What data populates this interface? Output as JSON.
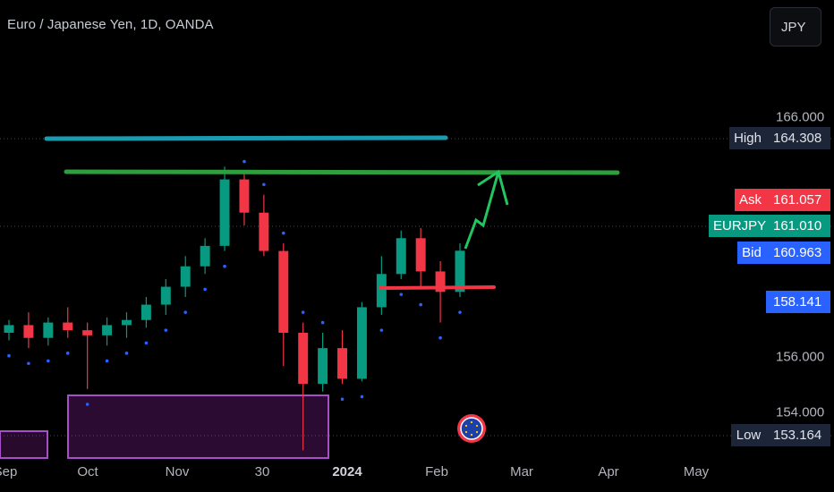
{
  "title": "Euro / Japanese Yen, 1D, OANDA",
  "currency_button": "JPY",
  "y_axis": {
    "ticks": [
      "166.000",
      "156.000",
      "154.000"
    ]
  },
  "x_axis": {
    "ticks": [
      "Sep",
      "Oct",
      "Nov",
      "30",
      "2024",
      "Feb",
      "Mar",
      "Apr",
      "May"
    ]
  },
  "price_tags": {
    "high": {
      "label": "High",
      "value": "164.308"
    },
    "ask": {
      "label": "Ask",
      "value": "161.057"
    },
    "last": {
      "label": "EURJPY",
      "value": "161.010"
    },
    "bid": {
      "label": "Bid",
      "value": "160.963"
    },
    "marker": {
      "value": "158.141"
    },
    "low": {
      "label": "Low",
      "value": "153.164"
    }
  },
  "colors": {
    "up": "#089981",
    "down": "#f23645",
    "sar": "#2962ff",
    "resistance_top": "#1a9bb0",
    "resistance": "#2e9e3e",
    "support": "#f23645",
    "zone": "#9c27b0",
    "projection": "#22c55e"
  },
  "chart_data": {
    "type": "candlestick",
    "symbol": "EURJPY",
    "timeframe": "1D",
    "ylim": [
      152.9,
      167.6
    ],
    "series": [
      {
        "name": "",
        "values": [
          {
            "x": "2023-09-01",
            "o": 157.8,
            "h": 158.3,
            "l": 157.5,
            "c": 158.1
          },
          {
            "x": "2023-09-08",
            "o": 158.1,
            "h": 158.6,
            "l": 157.2,
            "c": 157.6
          },
          {
            "x": "2023-09-15",
            "o": 157.6,
            "h": 158.4,
            "l": 157.3,
            "c": 158.2
          },
          {
            "x": "2023-09-22",
            "o": 158.2,
            "h": 158.8,
            "l": 157.6,
            "c": 157.9
          },
          {
            "x": "2023-09-29",
            "o": 157.9,
            "h": 158.2,
            "l": 155.6,
            "c": 157.7
          },
          {
            "x": "2023-10-06",
            "o": 157.7,
            "h": 158.4,
            "l": 157.3,
            "c": 158.1
          },
          {
            "x": "2023-10-13",
            "o": 158.1,
            "h": 158.6,
            "l": 157.6,
            "c": 158.3
          },
          {
            "x": "2023-10-20",
            "o": 158.3,
            "h": 159.2,
            "l": 158.0,
            "c": 158.9
          },
          {
            "x": "2023-10-27",
            "o": 158.9,
            "h": 159.9,
            "l": 158.5,
            "c": 159.6
          },
          {
            "x": "2023-11-03",
            "o": 159.6,
            "h": 160.8,
            "l": 159.2,
            "c": 160.4
          },
          {
            "x": "2023-11-10",
            "o": 160.4,
            "h": 161.5,
            "l": 160.1,
            "c": 161.2
          },
          {
            "x": "2023-11-17",
            "o": 161.2,
            "h": 164.3,
            "l": 161.0,
            "c": 163.8
          },
          {
            "x": "2023-11-24",
            "o": 163.8,
            "h": 164.1,
            "l": 162.0,
            "c": 162.5
          },
          {
            "x": "2023-12-01",
            "o": 162.5,
            "h": 163.2,
            "l": 160.8,
            "c": 161.0
          },
          {
            "x": "2023-12-08",
            "o": 161.0,
            "h": 161.3,
            "l": 156.5,
            "c": 157.8
          },
          {
            "x": "2023-12-15",
            "o": 157.8,
            "h": 158.2,
            "l": 153.2,
            "c": 155.8
          },
          {
            "x": "2023-12-22",
            "o": 155.8,
            "h": 157.8,
            "l": 155.5,
            "c": 157.2
          },
          {
            "x": "2023-12-29",
            "o": 157.2,
            "h": 157.9,
            "l": 155.8,
            "c": 156.0
          },
          {
            "x": "2024-01-05",
            "o": 156.0,
            "h": 159.0,
            "l": 155.9,
            "c": 158.8
          },
          {
            "x": "2024-01-12",
            "o": 158.8,
            "h": 160.8,
            "l": 158.5,
            "c": 160.1
          },
          {
            "x": "2024-01-19",
            "o": 160.1,
            "h": 161.8,
            "l": 159.9,
            "c": 161.5
          },
          {
            "x": "2024-01-26",
            "o": 161.5,
            "h": 161.9,
            "l": 159.5,
            "c": 160.2
          },
          {
            "x": "2024-02-02",
            "o": 160.2,
            "h": 160.6,
            "l": 158.2,
            "c": 159.4
          },
          {
            "x": "2024-02-09",
            "o": 159.4,
            "h": 161.3,
            "l": 159.2,
            "c": 161.01
          }
        ]
      }
    ]
  }
}
